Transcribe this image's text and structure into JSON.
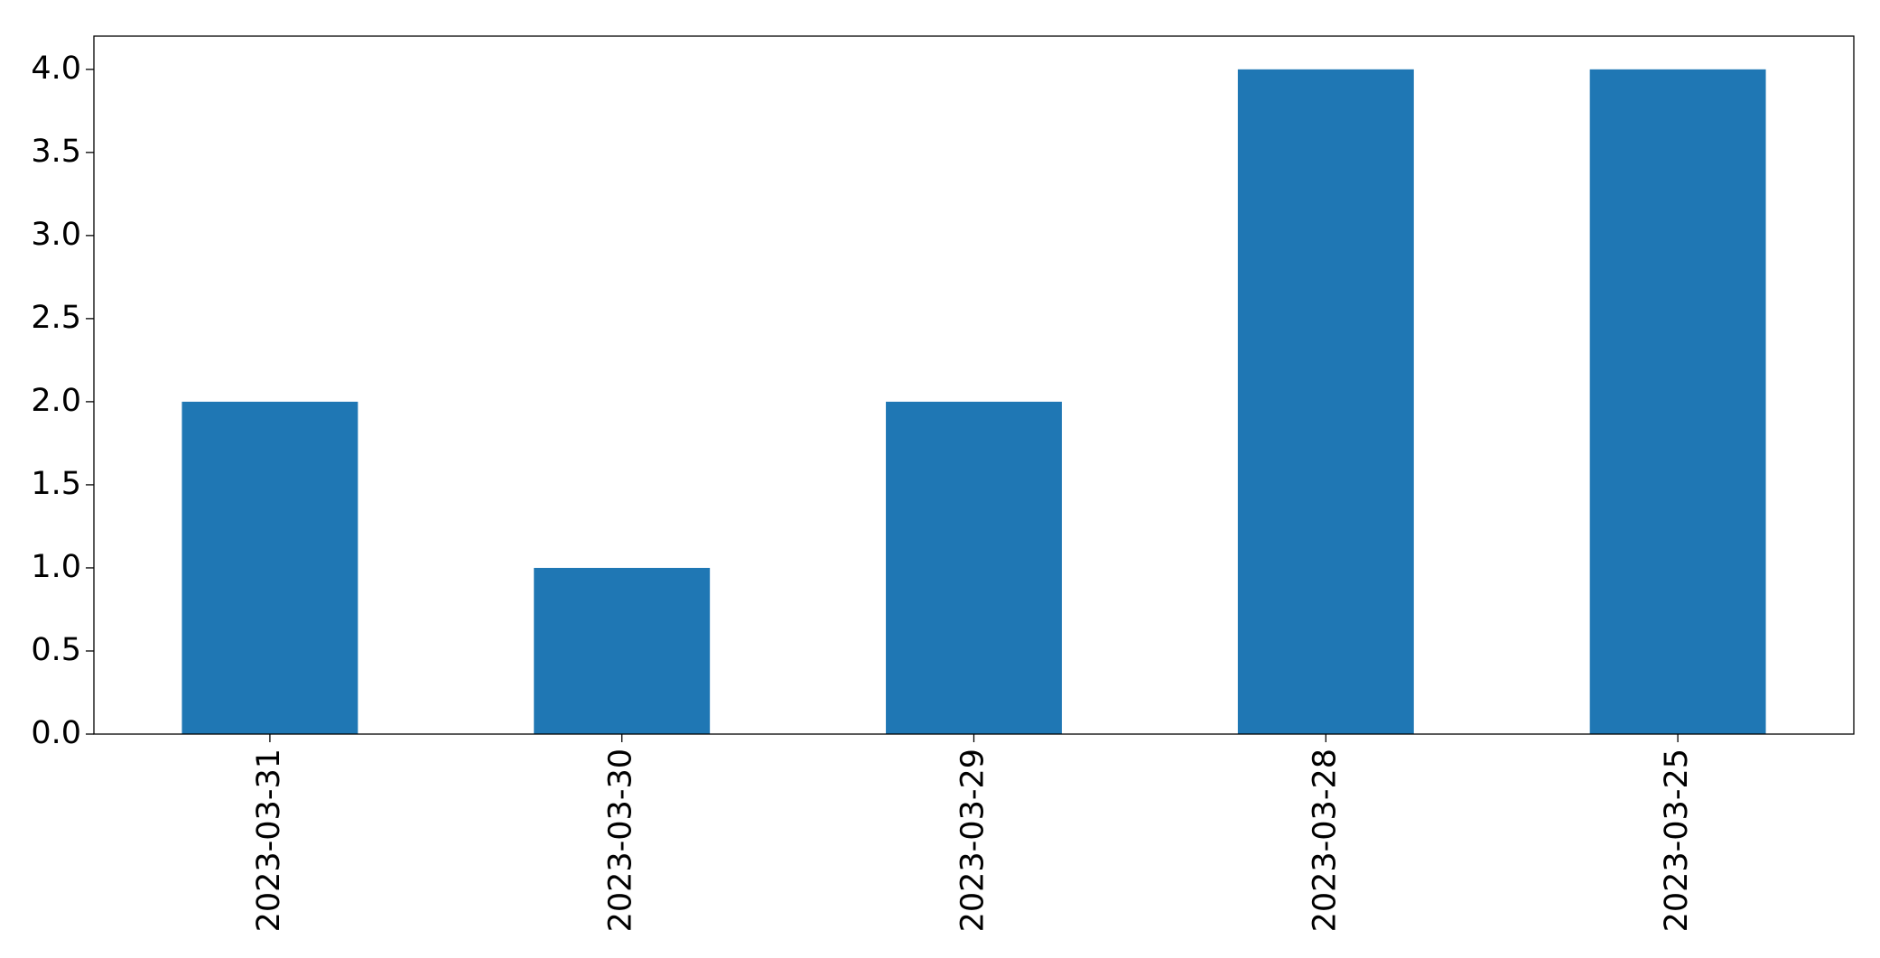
{
  "chart_data": {
    "type": "bar",
    "categories": [
      "2023-03-31",
      "2023-03-30",
      "2023-03-29",
      "2023-03-28",
      "2023-03-25"
    ],
    "values": [
      2,
      1,
      2,
      4,
      4
    ],
    "color": "#1f77b4",
    "ylim": [
      0,
      4.2
    ],
    "yticks": [
      {
        "value": 0,
        "label": "0.0"
      },
      0.5,
      {
        "value": 1,
        "label": "1.0"
      },
      1.5,
      {
        "value": 2,
        "label": "2.0"
      },
      2.5,
      {
        "value": 3,
        "label": "3.0"
      },
      3.5,
      {
        "value": 4,
        "label": "4.0"
      }
    ],
    "grid": false
  }
}
